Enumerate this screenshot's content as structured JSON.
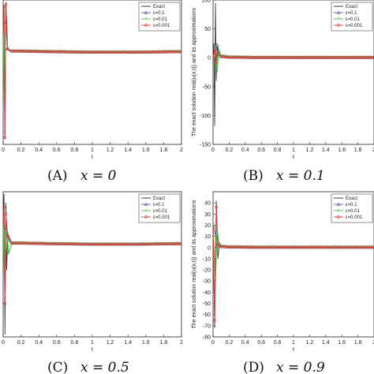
{
  "colors": {
    "exact": "#222222",
    "eps_0_1": "#4a5bd6",
    "eps_0_01": "#3ec83e",
    "eps_0_001": "#d83a3a",
    "marker_fill": "#c9b24a",
    "axes": "#222222"
  },
  "chart_data": [
    {
      "type": "line",
      "caption_label": "(A)",
      "caption_math": "x = 0",
      "xlabel": "t",
      "ylabel": "",
      "xlim": [
        0,
        2
      ],
      "ylim": [
        -8,
        5
      ],
      "xticks": [
        "0",
        "0.2",
        "0.4",
        "0.6",
        "0.8",
        "1",
        "1.2",
        "1.4",
        "1.6",
        "1.8",
        "2"
      ],
      "yticks": [],
      "legend": [
        "Exact",
        "ε=0.1",
        "ε=0.01",
        "ε=0.001"
      ],
      "legend_position": "top-right",
      "series": [
        {
          "name": "Exact",
          "x": [
            0,
            0.01,
            0.02,
            0.03,
            0.04,
            0.05,
            0.07,
            0.1,
            0.2,
            0.5,
            1.0,
            1.5,
            2.0
          ],
          "y": [
            2,
            4.5,
            -7.5,
            4.8,
            3.2,
            0.6,
            0.4,
            0.4,
            0.4,
            0.35,
            0.3,
            0.3,
            0.35
          ]
        },
        {
          "name": "ε=0.1",
          "x": [
            0,
            0.03,
            0.05,
            0.1,
            0.2,
            0.5,
            1.0,
            1.5,
            2.0
          ],
          "y": [
            3,
            3.0,
            0.6,
            0.4,
            0.4,
            0.35,
            0.3,
            0.3,
            0.35
          ]
        },
        {
          "name": "ε=0.01",
          "x": [
            0,
            0.02,
            0.03,
            0.05,
            0.1,
            0.2,
            0.5,
            1.0,
            1.5,
            2.0
          ],
          "y": [
            2,
            -7.0,
            4.2,
            0.6,
            0.4,
            0.4,
            0.35,
            0.3,
            0.3,
            0.35
          ]
        },
        {
          "name": "ε=0.001",
          "x": [
            0,
            0.01,
            0.02,
            0.03,
            0.05,
            0.1,
            0.2,
            0.5,
            1.0,
            1.5,
            2.0
          ],
          "y": [
            2,
            4.4,
            -7.4,
            4.6,
            0.6,
            0.4,
            0.4,
            0.35,
            0.3,
            0.3,
            0.35
          ]
        }
      ]
    },
    {
      "type": "line",
      "caption_label": "(B)",
      "caption_math": "x = 0.1",
      "xlabel": "t",
      "ylabel": "The exact solution real(u(x,t)) and its approximations",
      "xlim": [
        0,
        2
      ],
      "ylim": [
        -150,
        100
      ],
      "xticks": [
        "0",
        "0.2",
        "0.4",
        "0.6",
        "0.8",
        "1",
        "1.2",
        "1.4",
        "1.6",
        "1.8",
        "2"
      ],
      "yticks": [
        "-150",
        "-100",
        "-50",
        "0",
        "50",
        "100"
      ],
      "legend": [
        "Exact",
        "ε=0.1",
        "ε=0.01",
        "ε=0.001"
      ],
      "legend_position": "top-right",
      "series": [
        {
          "name": "Exact",
          "x": [
            0,
            0.01,
            0.02,
            0.03,
            0.04,
            0.05,
            0.07,
            0.1,
            0.2,
            0.5,
            1.0,
            1.5,
            2.0
          ],
          "y": [
            0,
            25,
            -118,
            95,
            -40,
            20,
            4,
            2,
            1,
            0.5,
            0.5,
            0.5,
            0.5
          ]
        },
        {
          "name": "ε=0.1",
          "x": [
            0,
            0.05,
            0.1,
            0.2,
            0.5,
            1.0,
            1.5,
            2.0
          ],
          "y": [
            0,
            22,
            3,
            1,
            0.5,
            0.5,
            0.5,
            0.5
          ]
        },
        {
          "name": "ε=0.01",
          "x": [
            0,
            0.03,
            0.05,
            0.07,
            0.1,
            0.2,
            0.5,
            1.0,
            1.5,
            2.0
          ],
          "y": [
            0,
            18,
            -25,
            12,
            3,
            1,
            0.5,
            0.5,
            0.5,
            0.5
          ]
        },
        {
          "name": "ε=0.001",
          "x": [
            0,
            0.02,
            0.04,
            0.06,
            0.1,
            0.2,
            0.5,
            1.0,
            1.5,
            2.0
          ],
          "y": [
            0,
            15,
            -10,
            8,
            2,
            1,
            0.5,
            0.5,
            0.5,
            0.5
          ]
        }
      ]
    },
    {
      "type": "line",
      "caption_label": "(C)",
      "caption_math": "x = 0.5",
      "xlabel": "t",
      "ylabel": "",
      "xlim": [
        0,
        2
      ],
      "ylim": [
        -8,
        5
      ],
      "xticks": [
        "0",
        "0.2",
        "0.4",
        "0.6",
        "0.8",
        "1",
        "1.2",
        "1.4",
        "1.6",
        "1.8",
        "2"
      ],
      "yticks": [],
      "legend": [
        "Exact",
        "ε=0.1",
        "ε=0.01",
        "ε=0.001"
      ],
      "legend_position": "top-right",
      "series": [
        {
          "name": "Exact",
          "x": [
            0,
            0.01,
            0.02,
            0.03,
            0.04,
            0.05,
            0.07,
            0.1,
            0.2,
            0.5,
            1.0,
            1.5,
            2.0
          ],
          "y": [
            2,
            4.8,
            -7.8,
            4.0,
            -2.0,
            1.2,
            0.5,
            0.4,
            0.4,
            0.35,
            0.3,
            0.3,
            0.35
          ]
        },
        {
          "name": "ε=0.1",
          "x": [
            0,
            0.05,
            0.1,
            0.2,
            0.5,
            1.0,
            1.5,
            2.0
          ],
          "y": [
            2,
            1.2,
            0.4,
            0.4,
            0.35,
            0.3,
            0.3,
            0.35
          ]
        },
        {
          "name": "ε=0.01",
          "x": [
            0,
            0.02,
            0.04,
            0.06,
            0.1,
            0.2,
            0.5,
            1.0,
            1.5,
            2.0
          ],
          "y": [
            2,
            -4.5,
            2.2,
            -0.6,
            0.4,
            0.4,
            0.35,
            0.3,
            0.3,
            0.35
          ]
        },
        {
          "name": "ε=0.001",
          "x": [
            0,
            0.01,
            0.02,
            0.03,
            0.05,
            0.1,
            0.2,
            0.5,
            1.0,
            1.5,
            2.0
          ],
          "y": [
            2,
            3.6,
            -5.0,
            3.0,
            1.0,
            0.4,
            0.4,
            0.35,
            0.3,
            0.3,
            0.35
          ]
        }
      ]
    },
    {
      "type": "line",
      "caption_label": "(D)",
      "caption_math": "x = 0.9",
      "xlabel": "t",
      "ylabel": "The exact solution real(u(x,t)) and its approximations",
      "xlim": [
        0,
        2
      ],
      "ylim": [
        -80,
        50
      ],
      "xticks": [
        "0",
        "0.2",
        "0.4",
        "0.6",
        "0.8",
        "1",
        "1.2",
        "1.4",
        "1.6",
        "1.8",
        "2"
      ],
      "yticks": [
        "-80",
        "-70",
        "-60",
        "-50",
        "-40",
        "-30",
        "-20",
        "-10",
        "0",
        "10",
        "20",
        "30",
        "40"
      ],
      "legend": [
        "Exact",
        "ε=0.1",
        "ε=0.01",
        "ε=0.001"
      ],
      "legend_position": "top-right",
      "series": [
        {
          "name": "Exact",
          "x": [
            0,
            0.02,
            0.04,
            0.06,
            0.08,
            0.1,
            0.2,
            0.5,
            1.0,
            1.5,
            2.0
          ],
          "y": [
            20,
            -72,
            42,
            -10,
            4,
            1,
            0.5,
            0.3,
            0.3,
            0.3,
            0.3
          ]
        },
        {
          "name": "ε=0.1",
          "x": [
            0,
            0.06,
            0.1,
            0.2,
            0.5,
            1.0,
            1.5,
            2.0
          ],
          "y": [
            20,
            3,
            1,
            0.5,
            0.3,
            0.3,
            0.3,
            0.3
          ]
        },
        {
          "name": "ε=0.01",
          "x": [
            0,
            0.03,
            0.05,
            0.08,
            0.1,
            0.2,
            0.5,
            1.0,
            1.5,
            2.0
          ],
          "y": [
            20,
            -30,
            15,
            2,
            1,
            0.5,
            0.3,
            0.3,
            0.3,
            0.3
          ]
        },
        {
          "name": "ε=0.001",
          "x": [
            0,
            0.02,
            0.04,
            0.06,
            0.1,
            0.2,
            0.5,
            1.0,
            1.5,
            2.0
          ],
          "y": [
            18,
            -65,
            36,
            2,
            1,
            0.5,
            0.3,
            0.3,
            0.3,
            0.3
          ]
        }
      ]
    }
  ]
}
